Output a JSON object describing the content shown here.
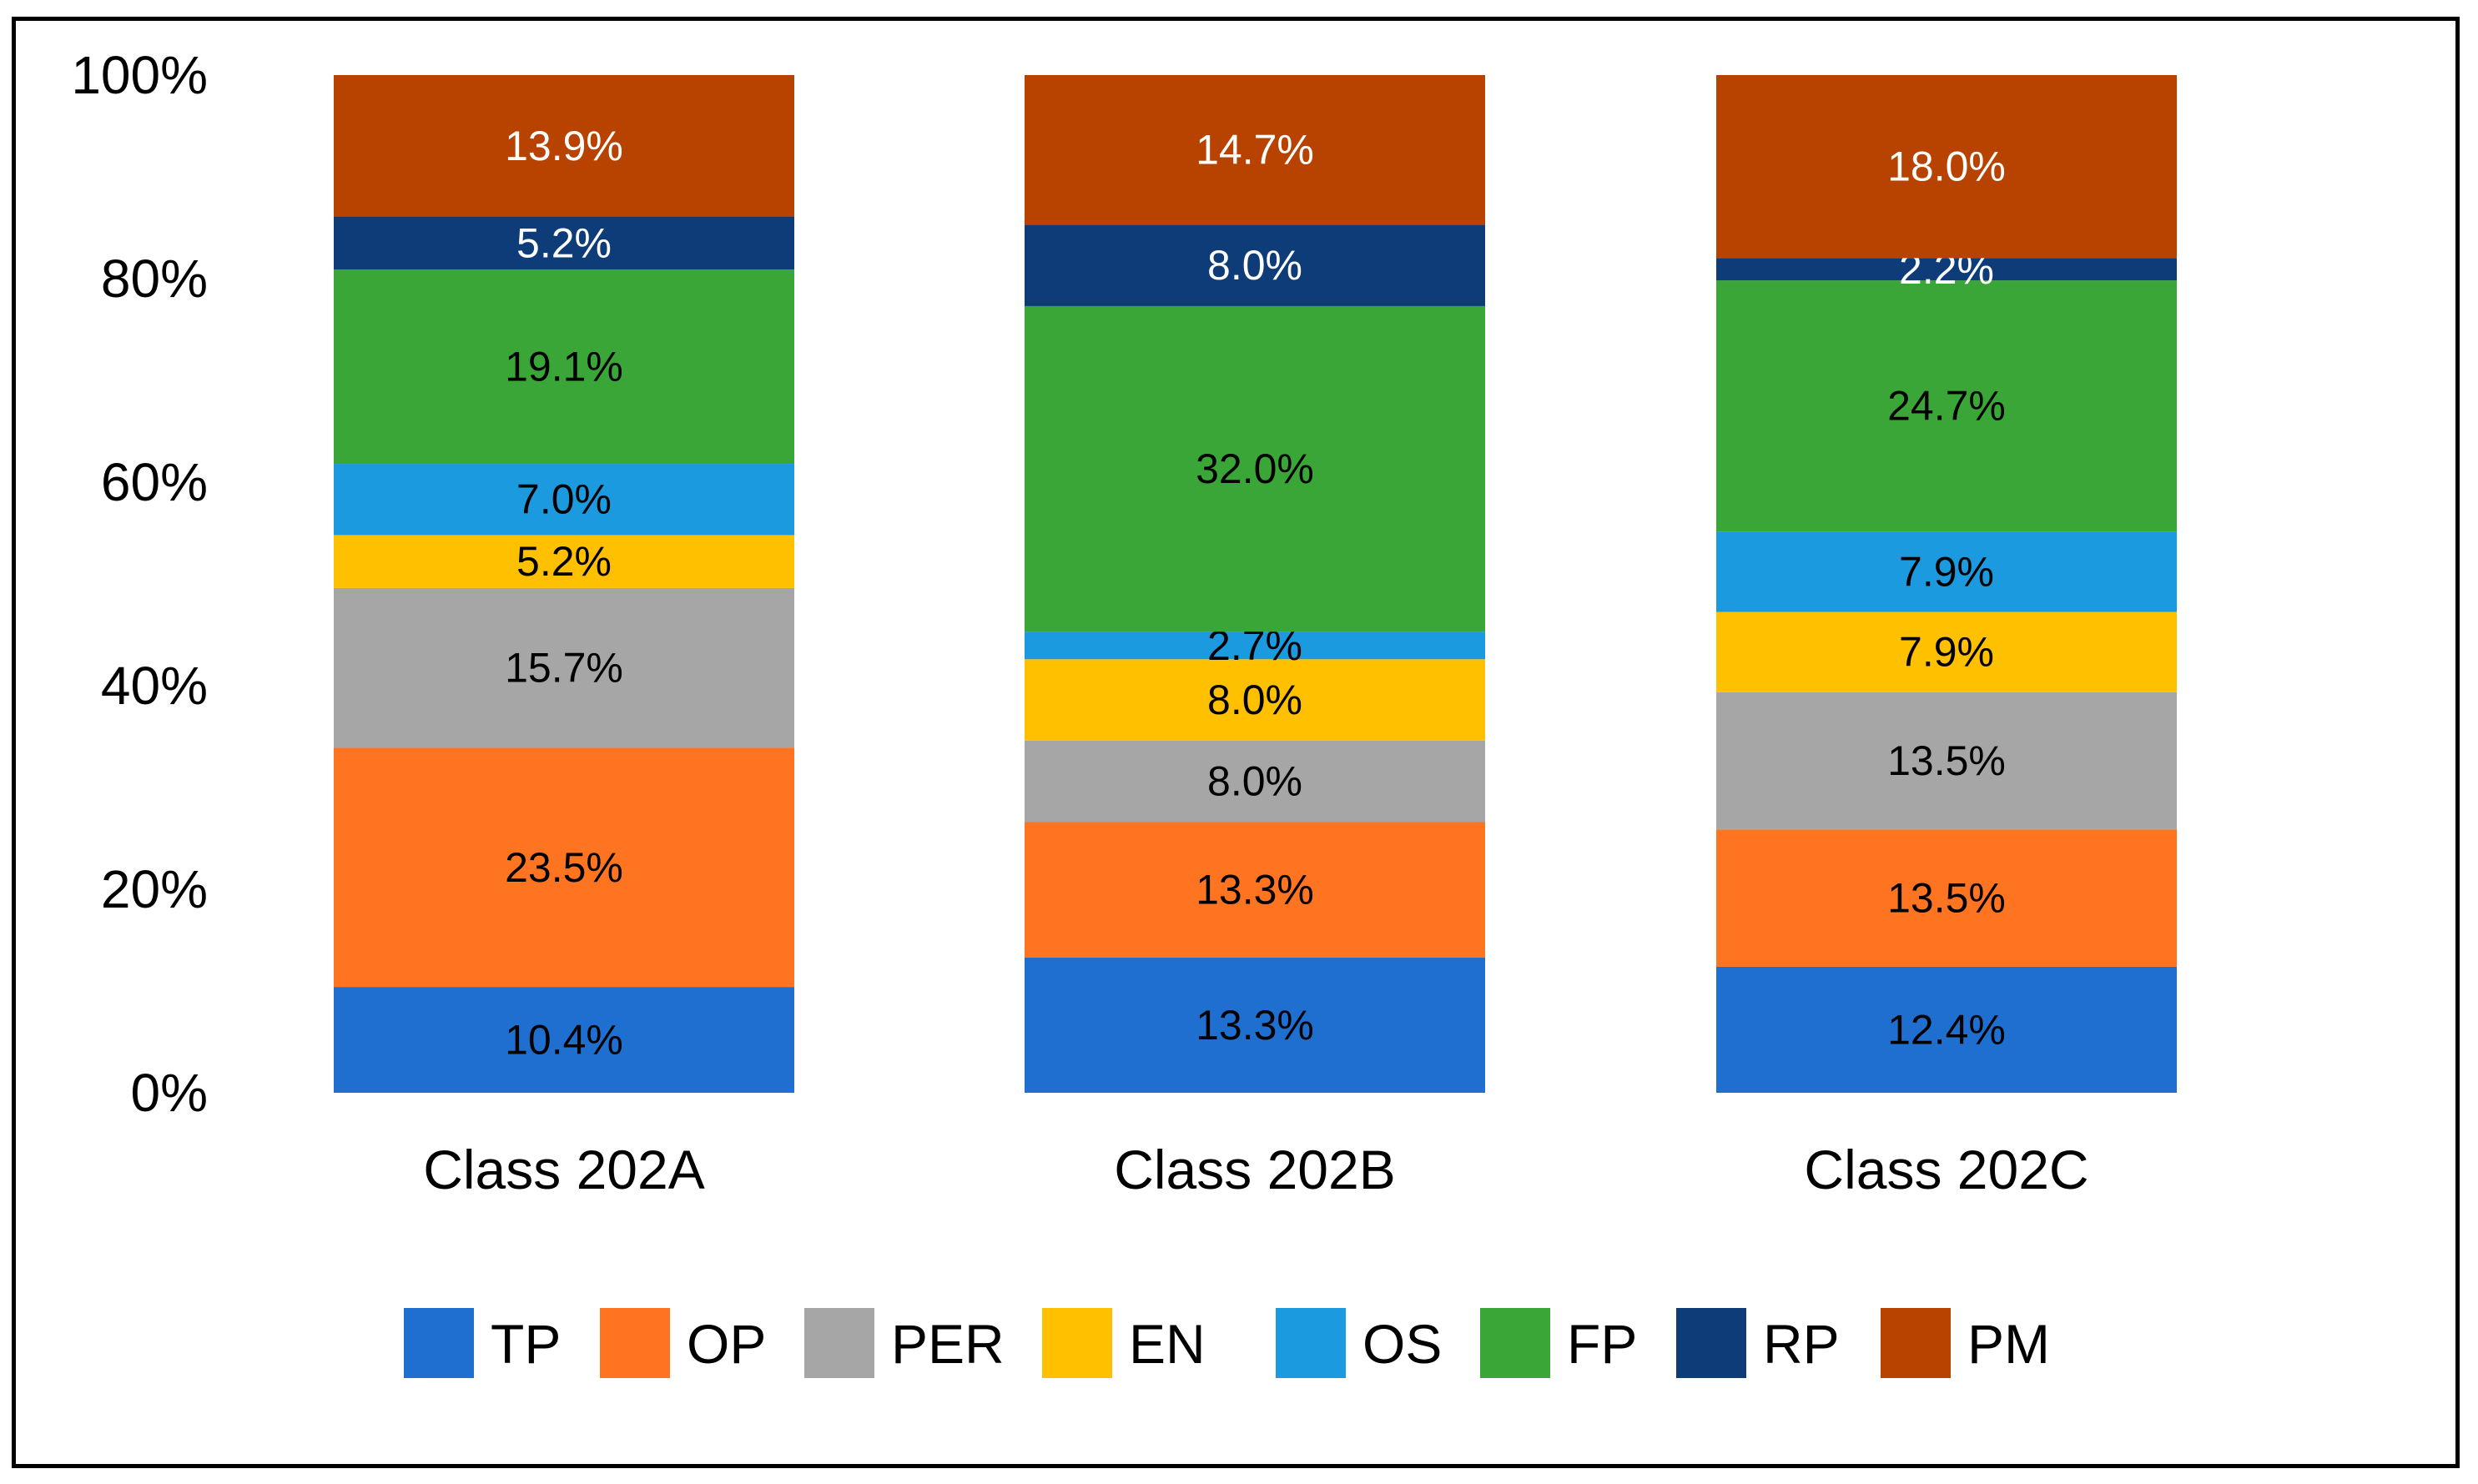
{
  "chart_data": {
    "type": "bar",
    "stacked": true,
    "title": "",
    "xlabel": "",
    "ylabel": "",
    "ylim": [
      0,
      100
    ],
    "categories": [
      "Class 202A",
      "Class 202B",
      "Class 202C"
    ],
    "yticks": [
      "0%",
      "20%",
      "40%",
      "60%",
      "80%",
      "100%"
    ],
    "series": [
      {
        "name": "TP",
        "color": "#1f6fd1",
        "label_color": "#000000",
        "values": [
          10.4,
          13.3,
          12.4
        ],
        "labels": [
          "10.4%",
          "13.3%",
          "12.4%"
        ]
      },
      {
        "name": "OP",
        "color": "#ff7420",
        "label_color": "#000000",
        "values": [
          23.5,
          13.3,
          13.5
        ],
        "labels": [
          "23.5%",
          "13.3%",
          "13.5%"
        ]
      },
      {
        "name": "PER",
        "color": "#a6a6a6",
        "label_color": "#000000",
        "values": [
          15.7,
          8.0,
          13.5
        ],
        "labels": [
          "15.7%",
          "8.0%",
          "13.5%"
        ]
      },
      {
        "name": "EN",
        "color": "#ffc000",
        "label_color": "#000000",
        "values": [
          5.2,
          8.0,
          7.9
        ],
        "labels": [
          "5.2%",
          "8.0%",
          "7.9%"
        ]
      },
      {
        "name": "OS",
        "color": "#1b9ae0",
        "label_color": "#000000",
        "values": [
          7.0,
          2.7,
          7.9
        ],
        "labels": [
          "7.0%",
          "2.7%",
          "7.9%"
        ]
      },
      {
        "name": "FP",
        "color": "#3aa637",
        "label_color": "#000000",
        "values": [
          19.1,
          32.0,
          24.7
        ],
        "labels": [
          "19.1%",
          "32.0%",
          "24.7%"
        ]
      },
      {
        "name": "RP",
        "color": "#0d3c78",
        "label_color": "#ffffff",
        "values": [
          5.2,
          8.0,
          2.2
        ],
        "labels": [
          "5.2%",
          "8.0%",
          "2.2%"
        ]
      },
      {
        "name": "PM",
        "color": "#b84300",
        "label_color": "#ffffff",
        "values": [
          13.9,
          14.7,
          18.0
        ],
        "labels": [
          "13.9%",
          "14.7%",
          "18.0%"
        ]
      }
    ],
    "legend_position": "bottom",
    "grid": false
  }
}
